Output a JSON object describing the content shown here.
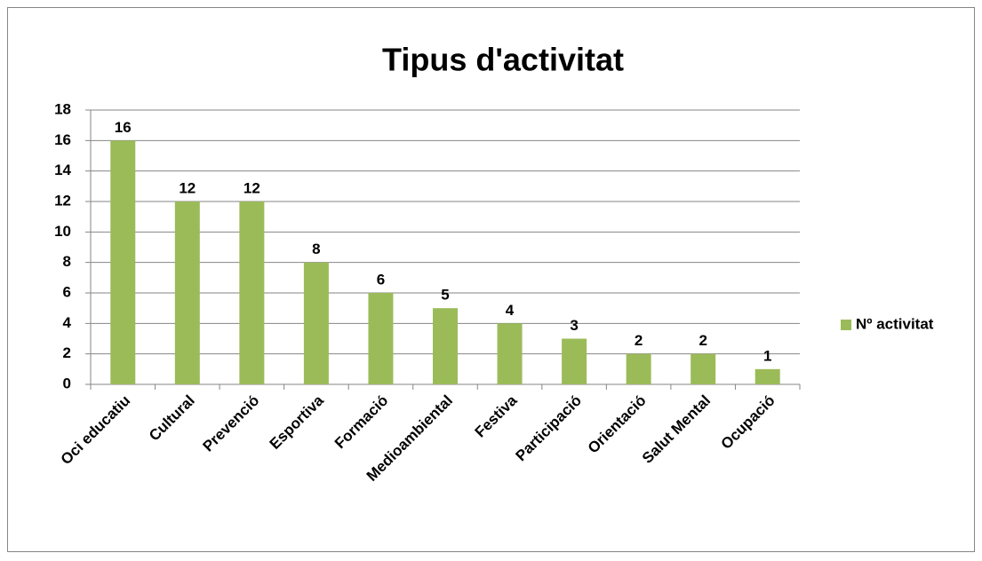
{
  "chart_data": {
    "type": "bar",
    "title": "Tipus d'activitat",
    "categories": [
      "Oci educatiu",
      "Cultural",
      "Prevenció",
      "Esportiva",
      "Formació",
      "Medioambiental",
      "Festiva",
      "Participació",
      "Orientació",
      "Salut Mental",
      "Ocupació"
    ],
    "series": [
      {
        "name": "Nº activitat",
        "color": "#9bbb59",
        "values": [
          16,
          12,
          12,
          8,
          6,
          5,
          4,
          3,
          2,
          2,
          1
        ]
      }
    ],
    "ylim": [
      0,
      18
    ],
    "yticks": [
      0,
      2,
      4,
      6,
      8,
      10,
      12,
      14,
      16,
      18
    ],
    "grid": true,
    "legend": "right"
  }
}
